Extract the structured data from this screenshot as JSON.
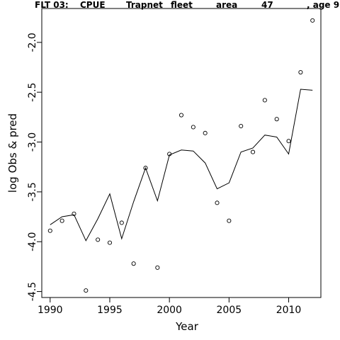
{
  "chart_data": {
    "type": "line",
    "title_parts": [
      "FLT 03:",
      "CPUE",
      "Trapnet",
      "fleet",
      "area",
      "47",
      ", age 9"
    ],
    "xlabel": "Year",
    "ylabel": "log Obs & pred",
    "xlim": [
      1989.3,
      2012.7
    ],
    "ylim": [
      -4.56,
      -1.66
    ],
    "x_ticks": [
      1990,
      1995,
      2000,
      2005,
      2010
    ],
    "y_ticks": [
      -4.5,
      -4.0,
      -3.5,
      -3.0,
      -2.5,
      -2.0
    ],
    "y_tick_labels": [
      "-4.5",
      "-4.0",
      "-3.5",
      "-3.0",
      "-2.5",
      "-2.0"
    ],
    "series": [
      {
        "style": "points",
        "x": [
          1990,
          1991,
          1992,
          1993,
          1994,
          1995,
          1996,
          1997,
          1998,
          1999,
          2000,
          2001,
          2002,
          2003,
          2004,
          2005,
          2006,
          2007,
          2008,
          2009,
          2010,
          2011,
          2012
        ],
        "values": [
          -3.89,
          -3.79,
          -3.72,
          -4.49,
          -3.98,
          -4.01,
          -3.81,
          -4.22,
          -3.26,
          -4.26,
          -3.12,
          -2.73,
          -2.85,
          -2.91,
          -3.61,
          -3.79,
          -2.84,
          -3.1,
          -2.58,
          -2.77,
          -2.99,
          -2.3,
          -1.78
        ]
      },
      {
        "style": "line",
        "x": [
          1990,
          1991,
          1992,
          1993,
          1994,
          1995,
          1996,
          1997,
          1998,
          1999,
          2000,
          2001,
          2002,
          2003,
          2004,
          2005,
          2006,
          2007,
          2008,
          2009,
          2010,
          2011,
          2012
        ],
        "values": [
          -3.83,
          -3.75,
          -3.73,
          -3.99,
          -3.77,
          -3.52,
          -3.97,
          -3.6,
          -3.26,
          -3.59,
          -3.13,
          -3.08,
          -3.09,
          -3.21,
          -3.47,
          -3.41,
          -3.1,
          -3.06,
          -2.93,
          -2.95,
          -3.12,
          -2.47,
          -2.48
        ]
      }
    ]
  }
}
